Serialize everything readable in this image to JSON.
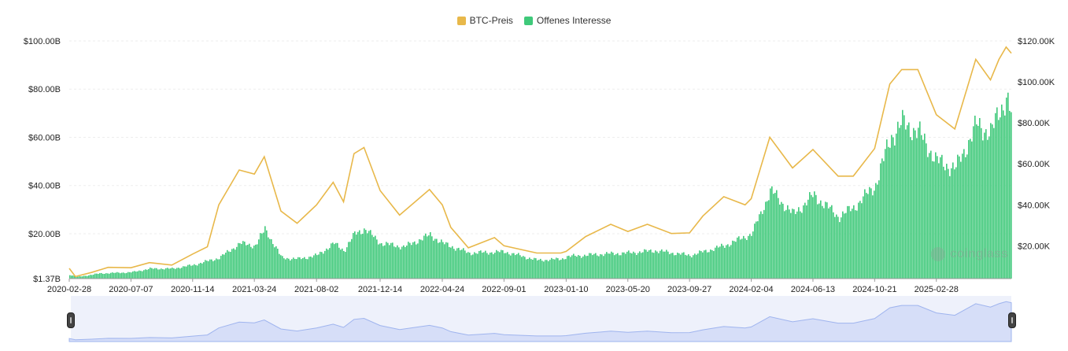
{
  "colors": {
    "price": "#E8B84A",
    "oi": "#3FC97A",
    "navigator_fill": "#D6DEF8",
    "navigator_line": "#9FB4EE"
  },
  "legend": [
    {
      "label": "BTC-Preis",
      "color": "#E8B84A"
    },
    {
      "label": "Offenes Interesse",
      "color": "#3FC97A"
    }
  ],
  "watermark": {
    "text": "coinglass",
    "icon": "coinglass-logo-icon"
  },
  "chart_data": {
    "type": "bar+line",
    "title": "",
    "xlabel": "",
    "x_ticks": [
      "2020-02-28",
      "2020-07-07",
      "2020-11-14",
      "2021-03-24",
      "2021-08-02",
      "2021-12-14",
      "2022-04-24",
      "2022-09-01",
      "2023-01-10",
      "2023-05-20",
      "2023-09-27",
      "2024-02-04",
      "2024-06-13",
      "2024-10-21",
      "2025-02-28"
    ],
    "y_left": {
      "label": "",
      "ticks": [
        "$1.37B",
        "$20.00B",
        "$40.00B",
        "$60.00B",
        "$80.00B",
        "$100.00B"
      ],
      "tick_values": [
        1.37,
        20,
        40,
        60,
        80,
        100
      ],
      "range": [
        1.37,
        100
      ]
    },
    "y_right": {
      "label": "",
      "ticks": [
        "$20.00K",
        "$40.00K",
        "$60.00K",
        "$80.00K",
        "$100.00K",
        "$120.00K"
      ],
      "tick_values": [
        20,
        40,
        60,
        80,
        100,
        120
      ],
      "range": [
        4,
        120
      ]
    },
    "legend_position": "top-center",
    "grid": true,
    "series": [
      {
        "name": "BTC-Preis",
        "axis": "right",
        "type": "line",
        "unit": "K USD",
        "points": [
          [
            "2020-02-28",
            9.0
          ],
          [
            "2020-03-12",
            5.0
          ],
          [
            "2020-04-15",
            7.0
          ],
          [
            "2020-05-20",
            9.5
          ],
          [
            "2020-07-07",
            9.3
          ],
          [
            "2020-08-15",
            11.8
          ],
          [
            "2020-10-01",
            10.6
          ],
          [
            "2020-11-14",
            16.0
          ],
          [
            "2020-12-15",
            19.5
          ],
          [
            "2021-01-08",
            40.0
          ],
          [
            "2021-02-20",
            57.0
          ],
          [
            "2021-03-24",
            55.0
          ],
          [
            "2021-04-14",
            63.5
          ],
          [
            "2021-05-19",
            37.0
          ],
          [
            "2021-06-22",
            31.0
          ],
          [
            "2021-08-02",
            40.0
          ],
          [
            "2021-09-06",
            51.0
          ],
          [
            "2021-09-28",
            41.5
          ],
          [
            "2021-10-20",
            65.0
          ],
          [
            "2021-11-10",
            68.0
          ],
          [
            "2021-12-14",
            47.0
          ],
          [
            "2022-01-24",
            35.0
          ],
          [
            "2022-03-28",
            47.5
          ],
          [
            "2022-04-24",
            40.0
          ],
          [
            "2022-05-12",
            29.0
          ],
          [
            "2022-06-18",
            19.0
          ],
          [
            "2022-08-12",
            24.0
          ],
          [
            "2022-09-01",
            20.0
          ],
          [
            "2022-11-09",
            16.5
          ],
          [
            "2022-12-30",
            16.5
          ],
          [
            "2023-01-10",
            17.3
          ],
          [
            "2023-02-20",
            24.5
          ],
          [
            "2023-04-14",
            30.5
          ],
          [
            "2023-05-20",
            27.0
          ],
          [
            "2023-06-30",
            30.5
          ],
          [
            "2023-08-20",
            26.0
          ],
          [
            "2023-09-27",
            26.3
          ],
          [
            "2023-10-25",
            34.5
          ],
          [
            "2023-12-08",
            44.0
          ],
          [
            "2024-01-22",
            40.0
          ],
          [
            "2024-02-04",
            43.0
          ],
          [
            "2024-03-14",
            73.0
          ],
          [
            "2024-05-01",
            58.0
          ],
          [
            "2024-06-13",
            67.0
          ],
          [
            "2024-08-05",
            54.0
          ],
          [
            "2024-09-06",
            54.0
          ],
          [
            "2024-10-21",
            67.5
          ],
          [
            "2024-11-22",
            99.0
          ],
          [
            "2024-12-17",
            106.0
          ],
          [
            "2025-01-20",
            106.0
          ],
          [
            "2025-02-28",
            84.0
          ],
          [
            "2025-04-08",
            77.0
          ],
          [
            "2025-05-22",
            111.0
          ],
          [
            "2025-06-22",
            101.0
          ],
          [
            "2025-07-10",
            111.0
          ],
          [
            "2025-07-25",
            117.0
          ],
          [
            "2025-08-05",
            114.0
          ]
        ]
      },
      {
        "name": "Offenes Interesse",
        "axis": "left",
        "type": "bar",
        "unit": "B USD",
        "points": [
          [
            "2020-02-28",
            3.0
          ],
          [
            "2020-03-13",
            2.0
          ],
          [
            "2020-05-01",
            3.5
          ],
          [
            "2020-07-07",
            4.0
          ],
          [
            "2020-08-15",
            5.5
          ],
          [
            "2020-10-01",
            5.5
          ],
          [
            "2020-11-14",
            7.0
          ],
          [
            "2021-01-08",
            10.0
          ],
          [
            "2021-02-20",
            16.0
          ],
          [
            "2021-03-24",
            15.0
          ],
          [
            "2021-04-14",
            22.0
          ],
          [
            "2021-05-19",
            10.0
          ],
          [
            "2021-06-22",
            9.5
          ],
          [
            "2021-08-02",
            11.0
          ],
          [
            "2021-09-06",
            16.0
          ],
          [
            "2021-09-28",
            13.0
          ],
          [
            "2021-10-20",
            20.0
          ],
          [
            "2021-11-10",
            22.0
          ],
          [
            "2021-12-14",
            16.0
          ],
          [
            "2022-02-01",
            14.5
          ],
          [
            "2022-03-28",
            19.5
          ],
          [
            "2022-04-24",
            16.0
          ],
          [
            "2022-06-18",
            12.0
          ],
          [
            "2022-09-01",
            12.5
          ],
          [
            "2022-11-09",
            9.0
          ],
          [
            "2022-12-30",
            9.5
          ],
          [
            "2023-01-10",
            10.5
          ],
          [
            "2023-03-20",
            11.5
          ],
          [
            "2023-05-20",
            12.0
          ],
          [
            "2023-07-15",
            13.0
          ],
          [
            "2023-09-27",
            11.0
          ],
          [
            "2023-12-08",
            15.0
          ],
          [
            "2024-02-04",
            20.0
          ],
          [
            "2024-03-14",
            38.0
          ],
          [
            "2024-05-01",
            28.0
          ],
          [
            "2024-06-13",
            36.0
          ],
          [
            "2024-08-05",
            27.0
          ],
          [
            "2024-09-06",
            31.0
          ],
          [
            "2024-10-21",
            40.0
          ],
          [
            "2024-11-22",
            60.0
          ],
          [
            "2024-12-17",
            66.0
          ],
          [
            "2025-01-20",
            62.0
          ],
          [
            "2025-02-28",
            50.0
          ],
          [
            "2025-04-08",
            47.0
          ],
          [
            "2025-05-22",
            65.0
          ],
          [
            "2025-06-22",
            62.0
          ],
          [
            "2025-07-10",
            71.0
          ],
          [
            "2025-07-25",
            77.0
          ],
          [
            "2025-08-05",
            68.0
          ]
        ]
      }
    ]
  }
}
